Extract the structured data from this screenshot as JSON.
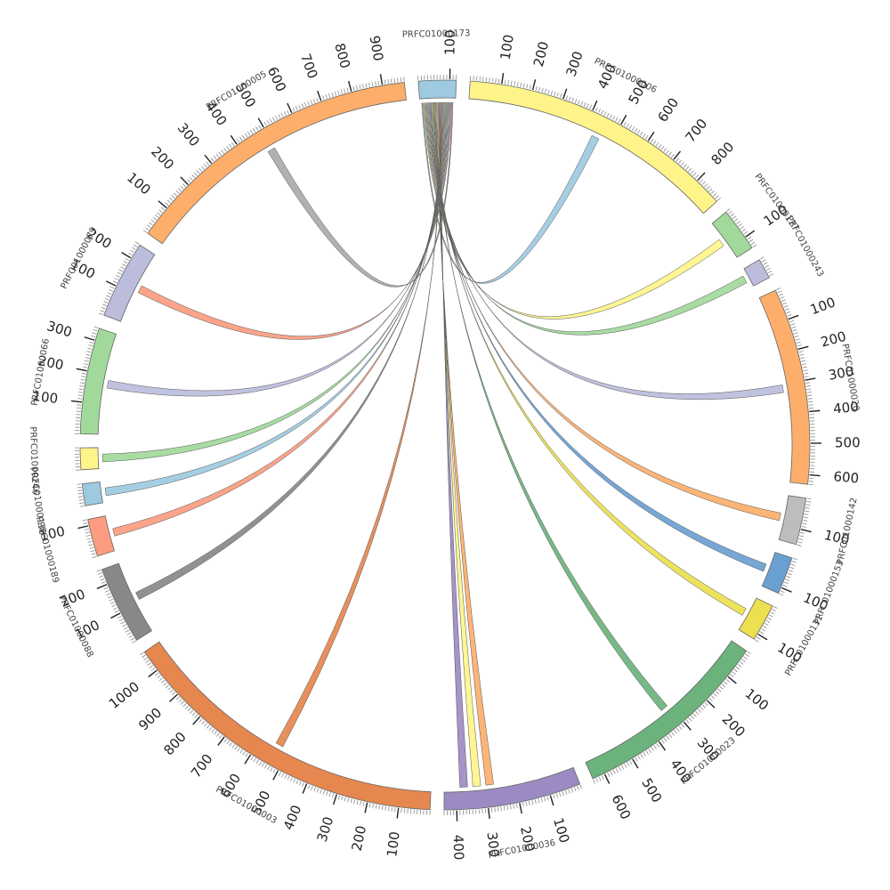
{
  "segments": [
    {
      "name": "PRFC01000173",
      "length": 120,
      "color": "#9ecae1",
      "ticks": [
        100
      ]
    },
    {
      "name": "PRFC01000006",
      "length": 890,
      "color": "#fff48a",
      "ticks": [
        100,
        200,
        300,
        400,
        500,
        600,
        700,
        800
      ]
    },
    {
      "name": "PRFC01000127",
      "length": 140,
      "color": "#a1d99b",
      "ticks": [
        100
      ]
    },
    {
      "name": "PRFC01000243",
      "length": 65,
      "color": "#bcbddc",
      "ticks": []
    },
    {
      "name": "PRFC01000020",
      "length": 630,
      "color": "#fdae6b",
      "ticks": [
        100,
        200,
        300,
        400,
        500,
        600
      ]
    },
    {
      "name": "PRFC01000142",
      "length": 150,
      "color": "#bdbdbd",
      "ticks": [
        100
      ]
    },
    {
      "name": "PRFC01000153",
      "length": 120,
      "color": "#6a9fd1",
      "ticks": [
        100
      ]
    },
    {
      "name": "PRFC01000131",
      "length": 120,
      "color": "#ecdf50",
      "ticks": [
        100
      ]
    },
    {
      "name": "PRFC01000023",
      "length": 640,
      "color": "#6cb27c",
      "ticks": [
        100,
        200,
        300,
        400,
        500,
        600
      ]
    },
    {
      "name": "PRFC01000036",
      "length": 440,
      "color": "#9c8bc2",
      "ticks": [
        100,
        200,
        300,
        400
      ]
    },
    {
      "name": "PRFC01000003",
      "length": 1070,
      "color": "#e6874f",
      "ticks": [
        100,
        200,
        300,
        400,
        500,
        600,
        700,
        800,
        900,
        1000
      ]
    },
    {
      "name": "PRFC01000088",
      "length": 250,
      "color": "#888888",
      "ticks": [
        100,
        200
      ]
    },
    {
      "name": "PRFC01000189",
      "length": 120,
      "color": "#fb9c80",
      "ticks": [
        100
      ]
    },
    {
      "name": "PRFC01000138",
      "length": 70,
      "color": "#9ecae1",
      "ticks": []
    },
    {
      "name": "PRFC01000246",
      "length": 70,
      "color": "#fff48a",
      "ticks": []
    },
    {
      "name": "PRFC01000066",
      "length": 340,
      "color": "#a1d99b",
      "ticks": [
        100,
        200,
        300
      ]
    },
    {
      "name": "PRFC01000079",
      "length": 250,
      "color": "#bcbddc",
      "ticks": [
        100,
        200
      ]
    },
    {
      "name": "PRFC01000005",
      "length": 970,
      "color": "#fdae6b",
      "ticks": [
        100,
        200,
        300,
        400,
        500,
        600,
        700,
        800,
        900
      ]
    }
  ],
  "links": [
    {
      "source": "PRFC01000173",
      "target": "PRFC01000006",
      "color": "#9ecae1"
    },
    {
      "source": "PRFC01000173",
      "target": "PRFC01000127",
      "color": "#fff48a"
    },
    {
      "source": "PRFC01000173",
      "target": "PRFC01000243",
      "color": "#a1d99b"
    },
    {
      "source": "PRFC01000173",
      "target": "PRFC01000020",
      "color": "#bcbddc"
    },
    {
      "source": "PRFC01000173",
      "target": "PRFC01000142",
      "color": "#fdae6b"
    },
    {
      "source": "PRFC01000173",
      "target": "PRFC01000153",
      "color": "#6a9fd1"
    },
    {
      "source": "PRFC01000173",
      "target": "PRFC01000131",
      "color": "#ecdf50"
    },
    {
      "source": "PRFC01000173",
      "target": "PRFC01000023",
      "color": "#6cb27c"
    },
    {
      "source": "PRFC01000173",
      "target": "PRFC01000036",
      "color": "#fdae6b"
    },
    {
      "source": "PRFC01000173",
      "target": "PRFC01000036",
      "color": "#fff48a"
    },
    {
      "source": "PRFC01000173",
      "target": "PRFC01000036",
      "color": "#9c8bc2"
    },
    {
      "source": "PRFC01000173",
      "target": "PRFC01000003",
      "color": "#e6874f"
    },
    {
      "source": "PRFC01000173",
      "target": "PRFC01000088",
      "color": "#888888"
    },
    {
      "source": "PRFC01000173",
      "target": "PRFC01000189",
      "color": "#fb9c80"
    },
    {
      "source": "PRFC01000173",
      "target": "PRFC01000138",
      "color": "#9ecae1"
    },
    {
      "source": "PRFC01000173",
      "target": "PRFC01000246",
      "color": "#a1d99b"
    },
    {
      "source": "PRFC01000173",
      "target": "PRFC01000066",
      "color": "#bcbddc"
    },
    {
      "source": "PRFC01000173",
      "target": "PRFC01000079",
      "color": "#fb9c80"
    },
    {
      "source": "PRFC01000173",
      "target": "PRFC01000005",
      "color": "#aaaaaa"
    }
  ]
}
